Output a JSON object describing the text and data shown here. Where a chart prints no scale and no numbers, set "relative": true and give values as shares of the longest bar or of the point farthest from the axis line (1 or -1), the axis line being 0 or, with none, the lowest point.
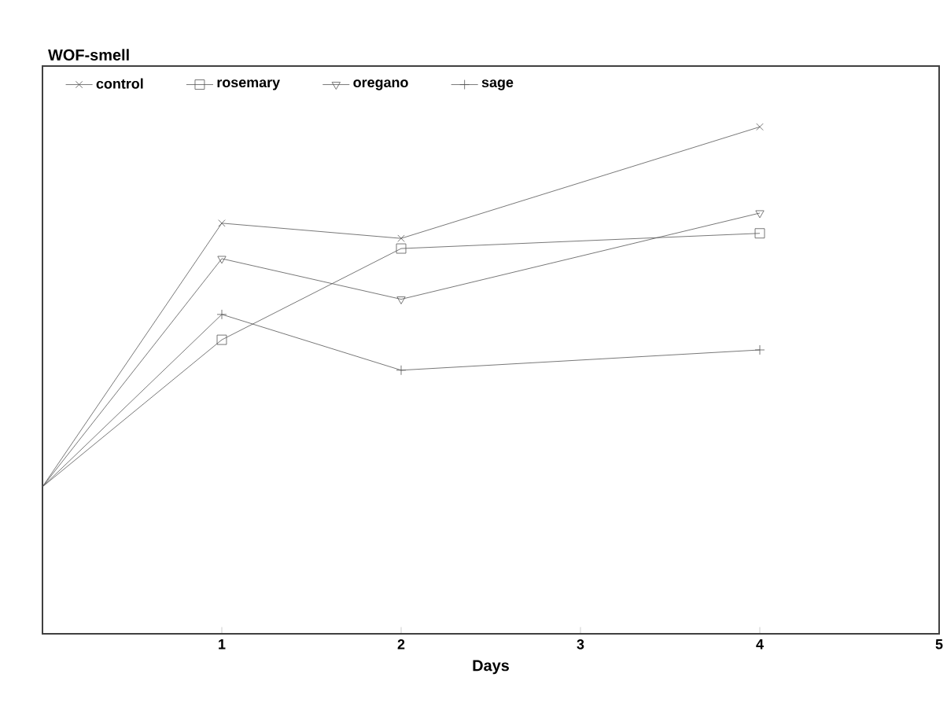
{
  "chart_data": {
    "type": "line",
    "relative": true,
    "ylabel": "WOF-smell",
    "xlabel": "Days",
    "x": [
      0,
      1,
      2,
      4
    ],
    "xlim": [
      0,
      5
    ],
    "xticks": [
      1,
      2,
      3,
      4,
      5
    ],
    "legend": "top",
    "grid": false,
    "line_style": "solid",
    "series": [
      {
        "name": "control",
        "color": "#555555",
        "marker": "cross",
        "values": [
          0.29,
          0.81,
          0.78,
          1.0
        ]
      },
      {
        "name": "rosemary",
        "color": "#555555",
        "marker": "square",
        "values": [
          0.29,
          0.58,
          0.76,
          0.79
        ]
      },
      {
        "name": "oregano",
        "color": "#555555",
        "marker": "triangle",
        "values": [
          0.29,
          0.74,
          0.66,
          0.83
        ]
      },
      {
        "name": "sage",
        "color": "#555555",
        "marker": "cross",
        "values": [
          0.29,
          0.63,
          0.52,
          0.56
        ]
      }
    ]
  }
}
